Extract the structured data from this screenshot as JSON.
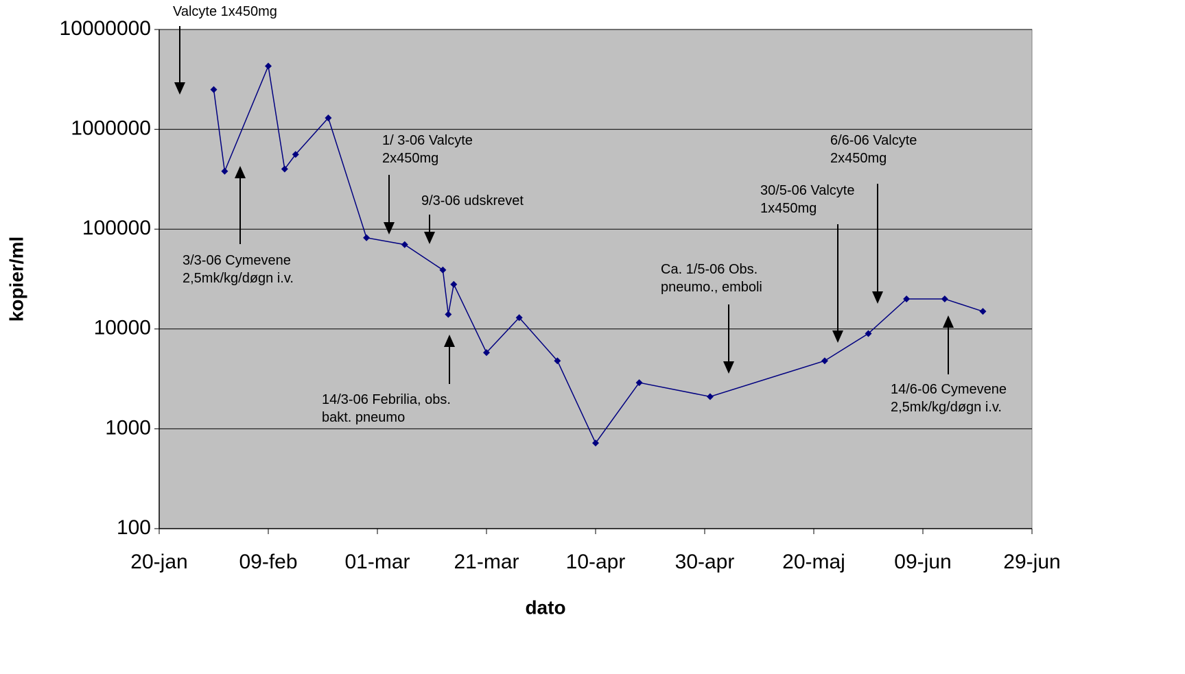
{
  "chart_data": {
    "type": "line",
    "x_label": "dato",
    "y_label": "kopier/ml",
    "log_scale": true,
    "grid": true,
    "plot_background": "#c0c0c0",
    "xlim": [
      "01-20",
      "06-29"
    ],
    "xticks": [
      {
        "value": "01-20",
        "label": "20-jan"
      },
      {
        "value": "02-09",
        "label": "09-feb"
      },
      {
        "value": "03-01",
        "label": "01-mar"
      },
      {
        "value": "03-21",
        "label": "21-mar"
      },
      {
        "value": "04-10",
        "label": "10-apr"
      },
      {
        "value": "04-30",
        "label": "30-apr"
      },
      {
        "value": "05-20",
        "label": "20-maj"
      },
      {
        "value": "06-09",
        "label": "09-jun"
      },
      {
        "value": "06-29",
        "label": "29-jun"
      }
    ],
    "ylim": [
      100,
      10000000
    ],
    "yticks": [
      100,
      1000,
      10000,
      100000,
      1000000,
      10000000
    ],
    "x": [
      "01-30",
      "02-01",
      "02-09",
      "02-12",
      "02-14",
      "02-20",
      "02-27",
      "03-06",
      "03-13",
      "03-14",
      "03-15",
      "03-21",
      "03-27",
      "04-03",
      "04-10",
      "04-18",
      "05-01",
      "05-22",
      "05-30",
      "06-06",
      "06-13",
      "06-20"
    ],
    "series": [
      {
        "color": "#000080",
        "values": [
          2500000,
          380000,
          4300000,
          400000,
          560000,
          1300000,
          82000,
          70000,
          39000,
          14000,
          28000,
          5800,
          13000,
          4800,
          720,
          2900,
          2100,
          4800,
          9000,
          20000,
          20000,
          15000
        ]
      }
    ],
    "annotations": [
      {
        "lines": [
          "Valcyte 1x450mg"
        ]
      },
      {
        "lines": [
          "3/3-06 Cymevene",
          "2,5mk/kg/døgn i.v."
        ]
      },
      {
        "lines": [
          "1/ 3-06 Valcyte",
          "2x450mg"
        ]
      },
      {
        "lines": [
          "9/3-06 udskrevet"
        ]
      },
      {
        "lines": [
          "14/3-06 Febrilia, obs.",
          "bakt. pneumo"
        ]
      },
      {
        "lines": [
          "Ca. 1/5-06 Obs.",
          "pneumo., emboli"
        ]
      },
      {
        "lines": [
          "30/5-06 Valcyte",
          "1x450mg"
        ]
      },
      {
        "lines": [
          "6/6-06 Valcyte",
          "2x450mg"
        ]
      },
      {
        "lines": [
          "14/6-06 Cymevene",
          "2,5mk/kg/døgn i.v."
        ]
      }
    ]
  }
}
